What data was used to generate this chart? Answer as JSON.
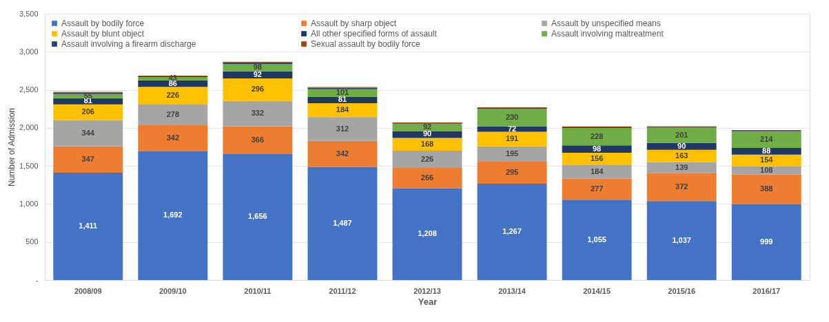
{
  "chart_data": {
    "type": "bar",
    "stacked": true,
    "xlabel": "Year",
    "ylabel": "Number of Admission",
    "categories": [
      "2008/09",
      "2009/10",
      "2010/11",
      "2011/12",
      "2012/13",
      "2013/14",
      "2014/15",
      "2015/16",
      "2016/17"
    ],
    "series": [
      {
        "name": "Assault by bodily force",
        "color": "#4472c4",
        "values": [
          1411,
          1692,
          1656,
          1487,
          1208,
          1267,
          1055,
          1037,
          999
        ],
        "value_labels": [
          "1,411",
          "1,692",
          "1,656",
          "1,487",
          "1,208",
          "1,267",
          "1,055",
          "1,037",
          "999"
        ]
      },
      {
        "name": "Assault by sharp object",
        "color": "#ed7d31",
        "values": [
          347,
          342,
          366,
          342,
          266,
          295,
          277,
          372,
          388
        ],
        "value_labels": [
          "347",
          "342",
          "366",
          "342",
          "266",
          "295",
          "277",
          "372",
          "388"
        ]
      },
      {
        "name": "Assault by unspecified means",
        "color": "#a5a5a5",
        "values": [
          344,
          278,
          332,
          312,
          226,
          195,
          184,
          139,
          108
        ],
        "value_labels": [
          "344",
          "278",
          "332",
          "312",
          "226",
          "195",
          "184",
          "139",
          "108"
        ]
      },
      {
        "name": "Assault by blunt object",
        "color": "#ffc000",
        "values": [
          206,
          226,
          296,
          184,
          168,
          191,
          156,
          163,
          154
        ],
        "value_labels": [
          "206",
          "226",
          "296",
          "184",
          "168",
          "191",
          "156",
          "163",
          "154"
        ]
      },
      {
        "name": "All other specified forms of assault",
        "color": "#203864",
        "values": [
          81,
          86,
          92,
          81,
          90,
          72,
          98,
          90,
          88
        ],
        "value_labels": [
          "81",
          "86",
          "92",
          "81",
          "90",
          "72",
          "98",
          "90",
          "88"
        ]
      },
      {
        "name": "Assault involving maltreatment",
        "color": "#70ad47",
        "values": [
          55,
          43,
          98,
          101,
          92,
          230,
          228,
          201,
          214
        ],
        "value_labels": [
          "55",
          "43",
          "98",
          "101",
          "92",
          "230",
          "228",
          "201",
          "214"
        ]
      },
      {
        "name": "Assault involving a firearm discharge",
        "color": "#264478",
        "values": [
          20,
          10,
          20,
          20,
          10,
          10,
          10,
          10,
          10
        ]
      },
      {
        "name": "Sexual assault by bodily force",
        "color": "#9e480e",
        "values": [
          10,
          10,
          10,
          10,
          10,
          10,
          10,
          10,
          10
        ]
      }
    ],
    "ylim": [
      0,
      3500
    ],
    "yticks": [
      {
        "value": 0,
        "label": "-"
      },
      {
        "value": 500,
        "label": "500"
      },
      {
        "value": 1000,
        "label": "1,000"
      },
      {
        "value": 1500,
        "label": "1,500"
      },
      {
        "value": 2000,
        "label": "2,000"
      },
      {
        "value": 2500,
        "label": "2,500"
      },
      {
        "value": 3000,
        "label": "3,000"
      },
      {
        "value": 3500,
        "label": "3,500"
      }
    ],
    "grid": "y",
    "legend": "top"
  }
}
